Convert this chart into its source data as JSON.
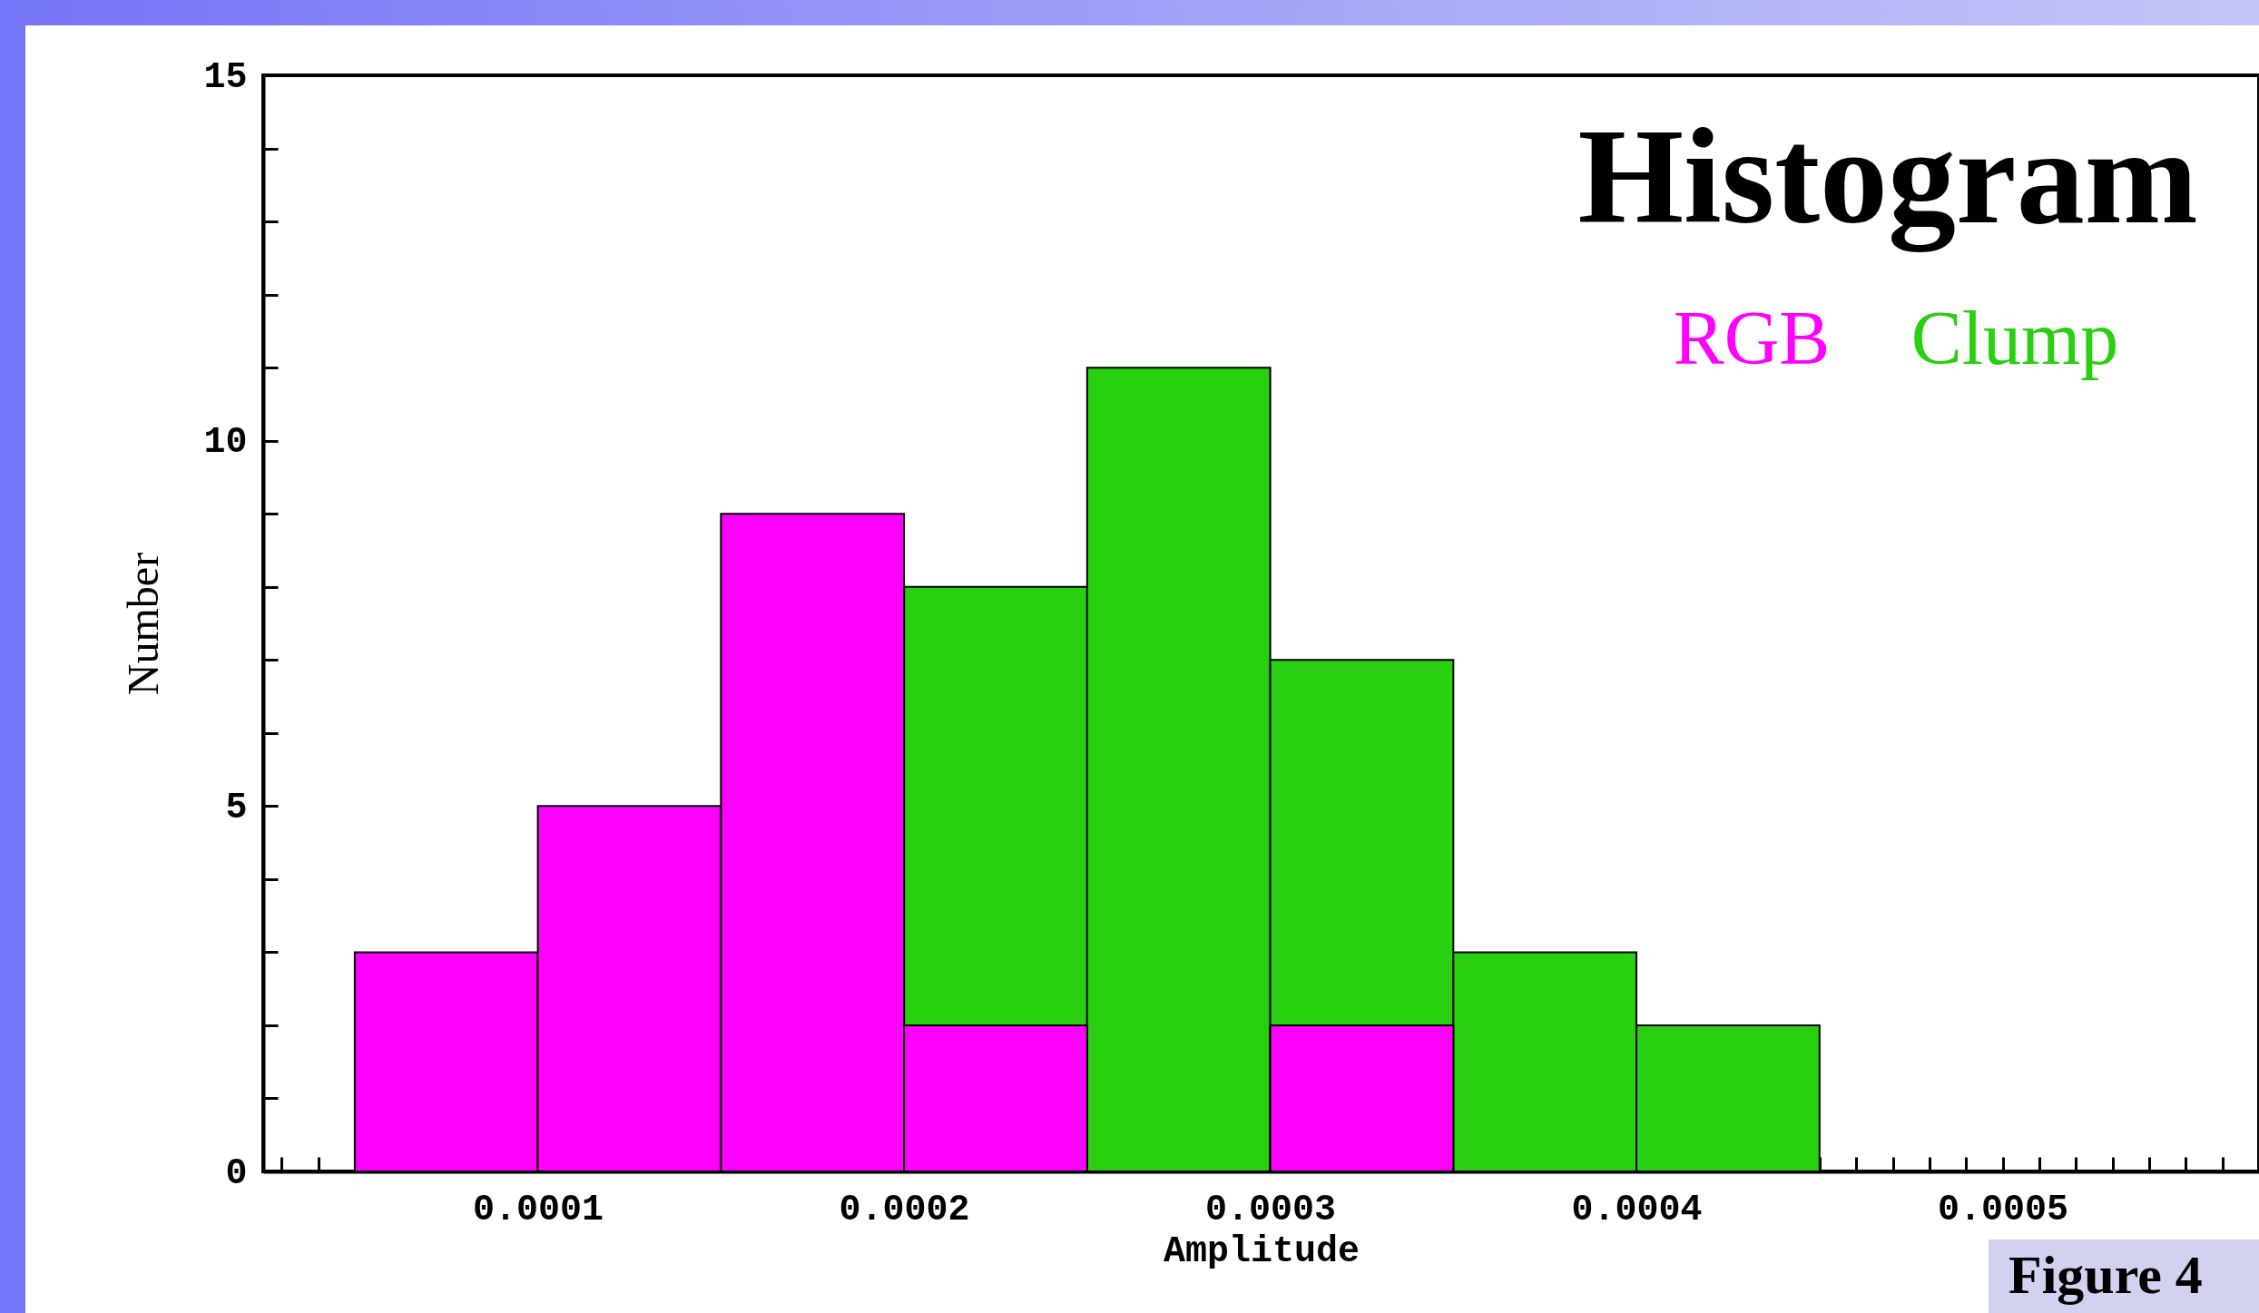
{
  "chart_data": {
    "type": "histogram",
    "title": "Histogram",
    "xlabel": "Amplitude",
    "ylabel": "Number",
    "bins": [
      5e-05,
      0.0001,
      0.00015,
      0.0002,
      0.00025,
      0.0003,
      0.00035,
      0.0004,
      0.00045
    ],
    "series": [
      {
        "name": "RGB",
        "color": "#ff00ff",
        "values": [
          3,
          5,
          9,
          2,
          null,
          2,
          null,
          null
        ]
      },
      {
        "name": "Clump",
        "color": "#28d010",
        "values": [
          null,
          null,
          null,
          8,
          11,
          7,
          3,
          2
        ]
      }
    ],
    "xlim": [
      2.5e-05,
      0.00057
    ],
    "xticks": [
      {
        "value": 3e-05,
        "label": null
      },
      {
        "value": 4e-05,
        "label": null
      },
      {
        "value": 5e-05,
        "label": null
      },
      {
        "value": 6e-05,
        "label": null
      },
      {
        "value": 7e-05,
        "label": null
      },
      {
        "value": 8e-05,
        "label": null
      },
      {
        "value": 9e-05,
        "label": null
      },
      {
        "value": 0.0001,
        "label": "0.0001"
      },
      {
        "value": 0.00011,
        "label": null
      },
      {
        "value": 0.00012,
        "label": null
      },
      {
        "value": 0.00013,
        "label": null
      },
      {
        "value": 0.00014,
        "label": null
      },
      {
        "value": 0.00015,
        "label": null
      },
      {
        "value": 0.00016,
        "label": null
      },
      {
        "value": 0.00017,
        "label": null
      },
      {
        "value": 0.00018,
        "label": null
      },
      {
        "value": 0.00019,
        "label": null
      },
      {
        "value": 0.0002,
        "label": "0.0002"
      },
      {
        "value": 0.00021,
        "label": null
      },
      {
        "value": 0.00022,
        "label": null
      },
      {
        "value": 0.00023,
        "label": null
      },
      {
        "value": 0.00024,
        "label": null
      },
      {
        "value": 0.00025,
        "label": null
      },
      {
        "value": 0.00026,
        "label": null
      },
      {
        "value": 0.00027,
        "label": null
      },
      {
        "value": 0.00028,
        "label": null
      },
      {
        "value": 0.00029,
        "label": null
      },
      {
        "value": 0.0003,
        "label": "0.0003"
      },
      {
        "value": 0.00031,
        "label": null
      },
      {
        "value": 0.00032,
        "label": null
      },
      {
        "value": 0.00033,
        "label": null
      },
      {
        "value": 0.00034,
        "label": null
      },
      {
        "value": 0.00035,
        "label": null
      },
      {
        "value": 0.00036,
        "label": null
      },
      {
        "value": 0.00037,
        "label": null
      },
      {
        "value": 0.00038,
        "label": null
      },
      {
        "value": 0.00039,
        "label": null
      },
      {
        "value": 0.0004,
        "label": "0.0004"
      },
      {
        "value": 0.00041,
        "label": null
      },
      {
        "value": 0.00042,
        "label": null
      },
      {
        "value": 0.00043,
        "label": null
      },
      {
        "value": 0.00044,
        "label": null
      },
      {
        "value": 0.00045,
        "label": null
      },
      {
        "value": 0.00046,
        "label": null
      },
      {
        "value": 0.00047,
        "label": null
      },
      {
        "value": 0.00048,
        "label": null
      },
      {
        "value": 0.00049,
        "label": null
      },
      {
        "value": 0.0005,
        "label": "0.0005"
      },
      {
        "value": 0.00051,
        "label": null
      },
      {
        "value": 0.00052,
        "label": null
      },
      {
        "value": 0.00053,
        "label": null
      },
      {
        "value": 0.00054,
        "label": null
      },
      {
        "value": 0.00055,
        "label": null
      },
      {
        "value": 0.00056,
        "label": null
      }
    ],
    "ylim": [
      0,
      15
    ],
    "yticks": [
      0,
      {
        "value": 1,
        "label": null
      },
      {
        "value": 2,
        "label": null
      },
      {
        "value": 3,
        "label": null
      },
      {
        "value": 4,
        "label": null
      },
      5,
      {
        "value": 6,
        "label": null
      },
      {
        "value": 7,
        "label": null
      },
      {
        "value": 8,
        "label": null
      },
      {
        "value": 9,
        "label": null
      },
      10,
      {
        "value": 11,
        "label": null
      },
      {
        "value": 12,
        "label": null
      },
      {
        "value": 13,
        "label": null
      },
      {
        "value": 14,
        "label": null
      },
      15
    ],
    "grid": false,
    "legend": "top right",
    "annotations": [
      "Figure 4"
    ]
  }
}
